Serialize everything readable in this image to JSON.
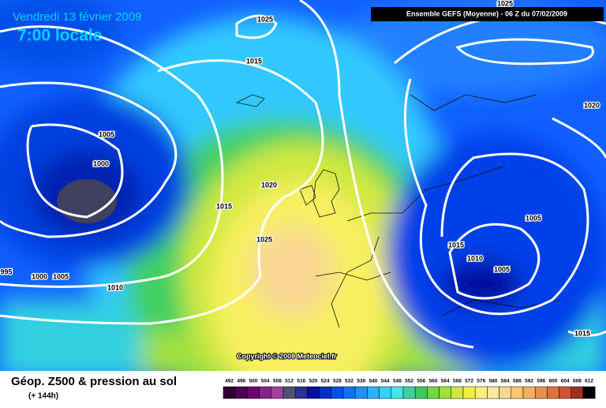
{
  "header": {
    "date": "Vendredi 13 février 2009",
    "time": "7:00 locale",
    "model": "Ensemble GEFS (Moyenne)  - 06 Z du 07/02/2009"
  },
  "isobar_labels": [
    "1025",
    "1025",
    "1015",
    "1020",
    "1005",
    "1000",
    "1020",
    "1015",
    "1025",
    "995",
    "1000",
    "1005",
    "1010",
    "1015",
    "1010",
    "1005",
    "1005",
    "1015"
  ],
  "copyright": "Copyright © 2008 Meteociel.fr",
  "footer": {
    "title": "Géop. Z500 & pression au sol",
    "subtitle": "(+ 144h)"
  },
  "colorbar": {
    "values": [
      492,
      496,
      500,
      504,
      508,
      512,
      516,
      520,
      524,
      528,
      532,
      536,
      540,
      544,
      548,
      552,
      556,
      560,
      564,
      568,
      572,
      576,
      580,
      584,
      588,
      592,
      596,
      600,
      604,
      608,
      612
    ],
    "colors": [
      "#300030",
      "#500050",
      "#700070",
      "#8a208a",
      "#a040a0",
      "#505070",
      "#303090",
      "#0010a0",
      "#0030c8",
      "#0050e8",
      "#1070ff",
      "#2090ff",
      "#30b0ff",
      "#30d0ff",
      "#40e8e8",
      "#40d0a0",
      "#40c860",
      "#70d840",
      "#a0e040",
      "#d0e840",
      "#f0f040",
      "#f8f080",
      "#f8e8a0",
      "#f8d890",
      "#f8c870",
      "#f0b060",
      "#e89050",
      "#e07040",
      "#d05030",
      "#a03020",
      "#000000"
    ]
  }
}
